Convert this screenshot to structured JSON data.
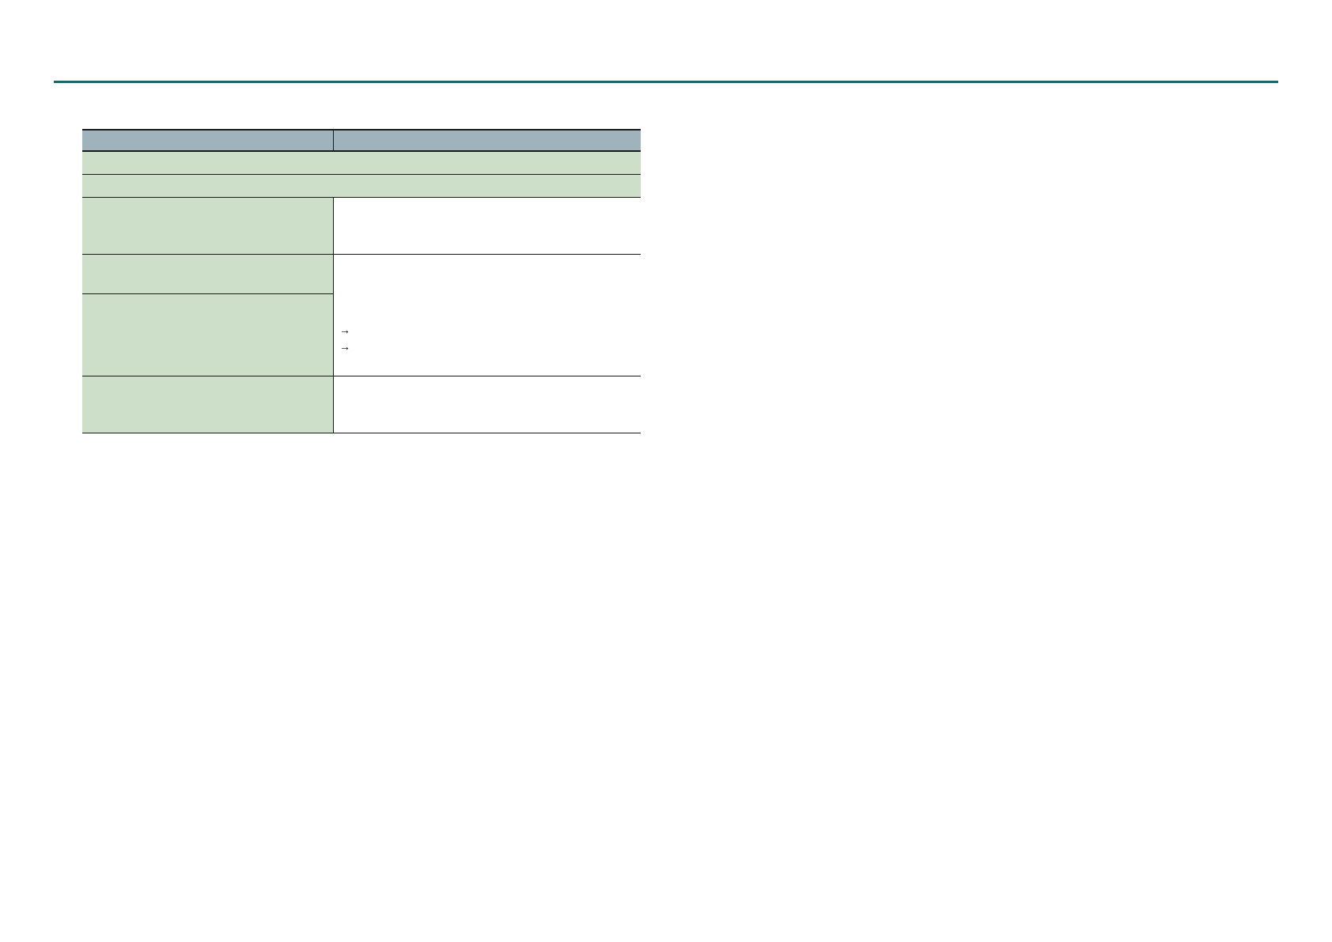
{
  "colors": {
    "rule": "#1e6370",
    "header_bg": "#9eb3bb",
    "label_bg": "#cddfc8"
  },
  "table": {
    "header": [
      "",
      ""
    ],
    "span_rows": [
      "",
      ""
    ],
    "rows": [
      {
        "label": "",
        "value": ""
      },
      {
        "label": "",
        "value": ""
      },
      {
        "label": "",
        "value": ""
      },
      {
        "label": "",
        "value": ""
      }
    ],
    "arrow_glyph": "→"
  }
}
